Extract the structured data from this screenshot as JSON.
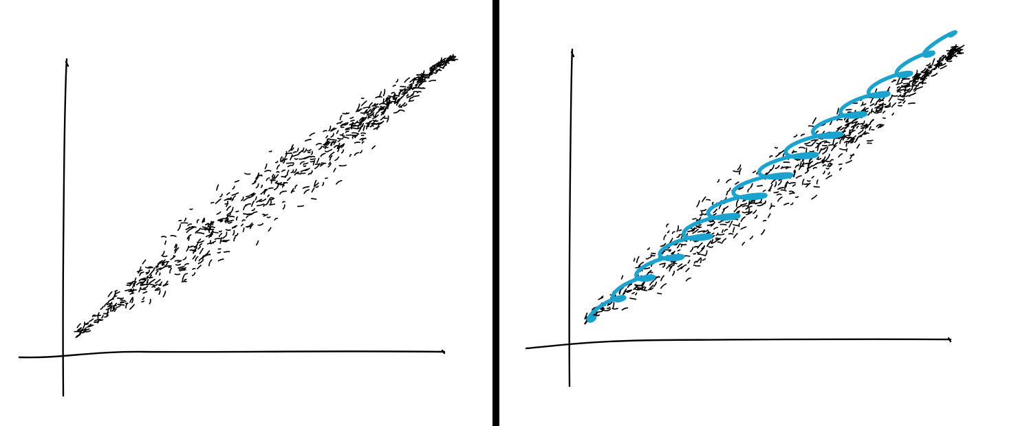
{
  "colors": {
    "ink": "#000000",
    "divider": "#000000",
    "overlay": "#1aa3cf",
    "background": "#ffffff"
  },
  "panels": [
    {
      "id": "left",
      "content": "scatter-cloud"
    },
    {
      "id": "right",
      "content": "scatter-cloud-with-oscillating-curve"
    }
  ]
}
